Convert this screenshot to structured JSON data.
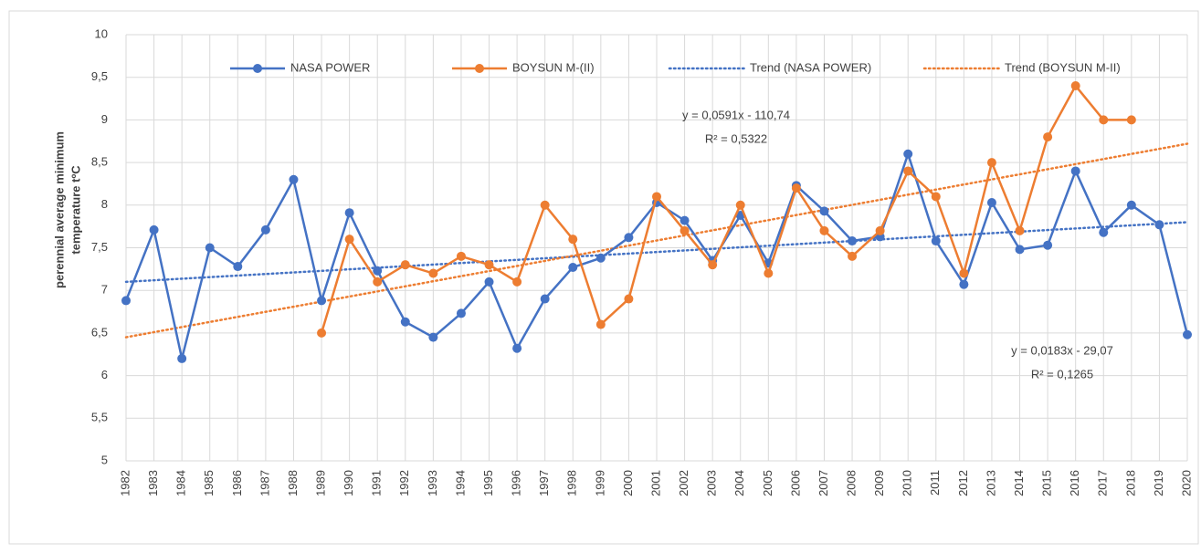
{
  "chart_data": {
    "type": "line",
    "y_label": [
      "perennial average minimum",
      "temperature tºC"
    ],
    "categories": [
      "1982",
      "1983",
      "1984",
      "1985",
      "1986",
      "1987",
      "1988",
      "1989",
      "1990",
      "1991",
      "1992",
      "1993",
      "1994",
      "1995",
      "1996",
      "1997",
      "1998",
      "1999",
      "2000",
      "2001",
      "2002",
      "2003",
      "2004",
      "2005",
      "2006",
      "2007",
      "2008",
      "2009",
      "2010",
      "2011",
      "2012",
      "2013",
      "2014",
      "2015",
      "2016",
      "2017",
      "2018",
      "2019",
      "2020"
    ],
    "series": [
      {
        "name": "NASA POWER",
        "color": "#4472c4",
        "values": [
          6.88,
          7.71,
          6.2,
          7.5,
          7.28,
          7.71,
          8.3,
          6.88,
          7.91,
          7.23,
          6.63,
          6.45,
          6.73,
          7.1,
          6.32,
          6.9,
          7.27,
          7.38,
          7.62,
          8.03,
          7.82,
          7.35,
          7.88,
          7.32,
          8.23,
          7.93,
          7.58,
          7.63,
          8.6,
          7.58,
          7.07,
          8.03,
          7.48,
          7.53,
          8.4,
          7.68,
          8.0,
          7.77,
          6.48
        ]
      },
      {
        "name": "BOYSUN M-(II)",
        "color": "#ed7d31",
        "values": [
          null,
          null,
          null,
          null,
          null,
          null,
          null,
          6.5,
          7.6,
          7.1,
          7.3,
          7.2,
          7.4,
          7.3,
          7.1,
          8.0,
          7.6,
          6.6,
          6.9,
          8.1,
          7.7,
          7.3,
          8.0,
          7.2,
          8.2,
          7.7,
          7.4,
          7.7,
          8.4,
          8.1,
          7.2,
          8.5,
          7.7,
          8.8,
          9.4,
          9.0,
          9.0,
          null,
          null
        ]
      }
    ],
    "trendlines": [
      {
        "name": "Trend (NASA POWER)",
        "color": "#4472c4",
        "values": [
          7.1,
          7.8
        ]
      },
      {
        "name": "Trend (BOYSUN M-II)",
        "color": "#ed7d31",
        "values": [
          6.45,
          8.72
        ]
      }
    ],
    "annotations": [
      {
        "lines": [
          "y = 0,0591x - 110,74",
          "R² = 0,5322"
        ]
      },
      {
        "lines": [
          "y = 0,0183x - 29,07",
          "R² = 0,1265"
        ]
      }
    ],
    "ylim": [
      5,
      10
    ],
    "yticks": [
      5,
      {
        "value": 5.5,
        "label": "5,5"
      },
      6,
      {
        "value": 6.5,
        "label": "6,5"
      },
      7,
      {
        "value": 7.5,
        "label": "7,5"
      },
      8,
      {
        "value": 8.5,
        "label": "8,5"
      },
      9,
      {
        "value": 9.5,
        "label": "9,5"
      },
      10
    ],
    "grid": true
  }
}
